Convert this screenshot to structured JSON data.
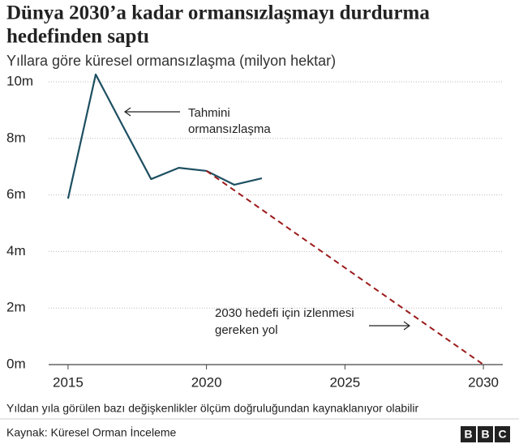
{
  "chart_data": {
    "type": "line",
    "title": [
      "Dünya 2030’a kadar ormansızlaşmayı durdurma",
      "hedefinden saptı"
    ],
    "subtitle": "Yıllara göre küresel ormansızlaşma (milyon hektar)",
    "series": [
      {
        "color": "#1d4f61",
        "dash": false,
        "x": [
          2015,
          2016,
          2017,
          2018,
          2019,
          2020,
          2021,
          2022
        ],
        "values": [
          5.87,
          10.26,
          8.4,
          6.56,
          6.96,
          6.85,
          6.36,
          6.59
        ]
      },
      {
        "color": "#9c1a1a",
        "dash": true,
        "x": [
          2020,
          2030
        ],
        "values": [
          6.85,
          0
        ]
      }
    ],
    "xlim": [
      2014.3,
      2030.7
    ],
    "xticks": [
      2015,
      2020,
      2025,
      2030
    ],
    "ylim": [
      0,
      10
    ],
    "yticks": [
      {
        "value": 0,
        "label": "0m"
      },
      {
        "value": 2,
        "label": "2m"
      },
      {
        "value": 4,
        "label": "4m"
      },
      {
        "value": 6,
        "label": "6m"
      },
      {
        "value": 8,
        "label": "8m"
      },
      {
        "value": 10,
        "label": "10m"
      }
    ],
    "grid": true,
    "annotations": [
      {
        "lines": [
          "Tahmini",
          "ormansızlaşma"
        ]
      },
      {
        "lines": [
          "2030 hedefi için izlenmesi",
          "gereken yol"
        ]
      }
    ],
    "footnote": "Yıldan yıla görülen bazı değişkenlikler ölçüm doğruluğundan kaynaklanıyor olabilir",
    "source": "Kaynak: Küresel Orman İnceleme",
    "logo": [
      "B",
      "B",
      "C"
    ]
  }
}
